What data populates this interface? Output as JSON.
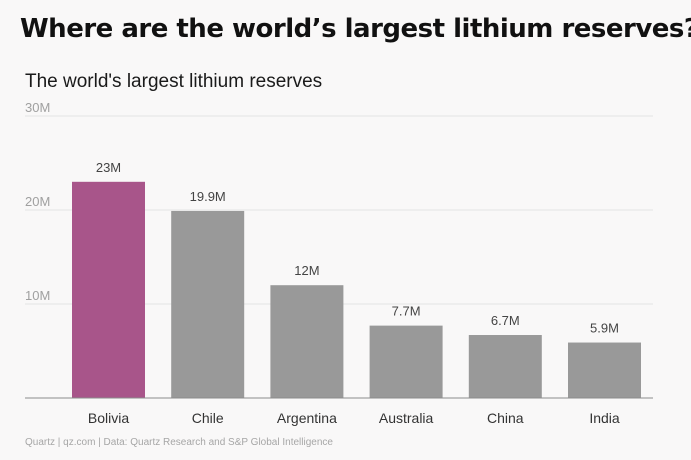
{
  "headline": "Where are the world’s largest lithium reserves?",
  "source": "Quartz | qz.com | Data: Quartz Research and S&P Global Intelligence",
  "colors": {
    "highlight": "#a8558a",
    "bar": "#999999",
    "grid": "#e4e4e4",
    "axis": "#8c8c8c"
  },
  "chart_data": {
    "type": "bar",
    "title": "The world's largest lithium reserves",
    "xlabel": "",
    "ylabel": "",
    "categories": [
      "Bolivia",
      "Chile",
      "Argentina",
      "Australia",
      "China",
      "India"
    ],
    "values": [
      23,
      19.9,
      12,
      7.7,
      6.7,
      5.9
    ],
    "value_labels": [
      "23M",
      "19.9M",
      "12M",
      "7.7M",
      "6.7M",
      "5.9M"
    ],
    "highlight_index": 0,
    "ylim": [
      0,
      30
    ],
    "yticks": [
      10,
      20,
      30
    ],
    "ytick_labels": [
      "10M",
      "20M",
      "30M"
    ],
    "grid": true,
    "legend": "none"
  }
}
